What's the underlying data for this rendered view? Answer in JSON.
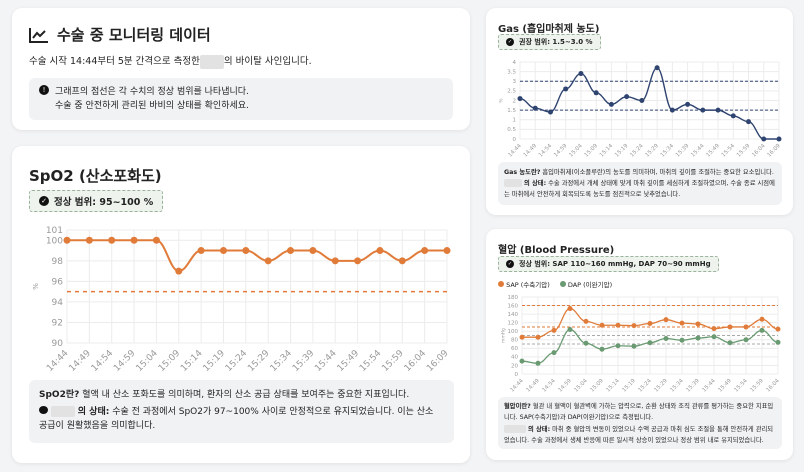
{
  "header": {
    "title": "수술 중 모니터링 데이터",
    "subtitle_pre": "수술 시작 14:44부터 5분 간격으로 측정한",
    "subtitle_post": "의 바이탈 사인입니다.",
    "info_line1": "그래프의 점선은 각 수치의 정상 범위를 나타냅니다.",
    "info_line2": "수술 중 안전하게 관리된 바비의 상태를 확인하세요."
  },
  "spo2": {
    "title": "SpO2 (산소포화도)",
    "badge": "정상 범위: 95~100 %",
    "note_bold": "SpO2란?",
    "note_text": " 혈액 내 산소 포화도를 의미하며, 환자의 산소 공급 상태를 보여주는 중요한 지표입니다.",
    "status_label": "의 상태:",
    "status_text": " 수술 전 과정에서 SpO2가 97~100% 사이로 안정적으로 유지되었습니다. 이는 산소 공급이 원활했음을 의미합니다."
  },
  "gas": {
    "title": "Gas (흡입마취제 농도)",
    "badge": "권장 범위: 1.5~3.0 %",
    "note_bold": "Gas 농도란?",
    "note_text": " 흡입마취제(이소플루란)의 농도를 의미하며, 마취의 깊이를 조절하는 중요한 요소입니다.",
    "status_label": "의 상태:",
    "status_text": " 수술 과정에서 개체 상태에 맞게 마취 깊이를 세심하게 조절하였으며, 수술 종료 시점에는 마취에서 안전하게 회복되도록 농도를 점진적으로 낮추었습니다."
  },
  "bp": {
    "title": "혈압 (Blood Pressure)",
    "badge": "정상 범위: SAP 110~160 mmHg, DAP 70~90 mmHg",
    "note_bold": "혈압이란?",
    "note_text": " 혈관 내 혈액이 혈관벽에 가하는 압력으로, 순환 상태와 조직 관류를 평가하는 중요한 지표입니다. SAP(수축기압)과 DAP(이완기압)으로 측정됩니다.",
    "status_label": "의 상태:",
    "status_text": " 마취 중 혈압의 변동이 있었으나 수액 공급과 마취 심도 조절을 통해 안전하게 관리되었습니다. 수술 과정에서 생체 반응에 따른 일시적 상승이 있었으나 정상 범위 내로 유지되었습니다."
  },
  "colors": {
    "spo2": "#e07b39",
    "gas": "#2f4470",
    "sap": "#e07b39",
    "dap": "#6a9a72"
  },
  "chart_data": [
    {
      "type": "line",
      "title": "SpO2 (산소포화도)",
      "ylabel": "%",
      "ylim": [
        90,
        101
      ],
      "yticks": [
        90,
        92,
        94,
        96,
        98,
        100,
        101
      ],
      "x": [
        "14:44",
        "14:49",
        "14:54",
        "14:59",
        "15:04",
        "15:09",
        "15:14",
        "15:19",
        "15:24",
        "15:29",
        "15:34",
        "15:39",
        "15:44",
        "15:49",
        "15:54",
        "15:59",
        "16:04",
        "16:09"
      ],
      "series": [
        {
          "name": "SpO2",
          "values": [
            100,
            100,
            100,
            100,
            100,
            97,
            99,
            99,
            99,
            98,
            99,
            99,
            98,
            98,
            99,
            98,
            99,
            99
          ]
        }
      ],
      "ref_lines": [
        95
      ]
    },
    {
      "type": "line",
      "title": "Gas (흡입마취제 농도)",
      "ylabel": "%",
      "ylim": [
        0,
        4
      ],
      "yticks": [
        0,
        0.5,
        1.0,
        1.5,
        2.0,
        2.5,
        3.0,
        3.5,
        4.0
      ],
      "x": [
        "14:44",
        "14:49",
        "14:54",
        "14:59",
        "15:04",
        "15:09",
        "15:14",
        "15:19",
        "15:24",
        "15:29",
        "15:34",
        "15:39",
        "15:44",
        "15:49",
        "15:54",
        "15:59",
        "16:04",
        "16:09"
      ],
      "series": [
        {
          "name": "Gas",
          "values": [
            2.1,
            1.6,
            1.4,
            2.6,
            3.4,
            2.4,
            1.8,
            2.2,
            2.0,
            3.7,
            1.5,
            1.8,
            1.5,
            1.5,
            1.2,
            0.9,
            0,
            0
          ]
        }
      ],
      "ref_lines": [
        1.5,
        3.0
      ]
    },
    {
      "type": "line",
      "title": "혈압 (Blood Pressure)",
      "ylabel": "mmHg",
      "ylim": [
        0,
        180
      ],
      "yticks": [
        0,
        20,
        40,
        60,
        80,
        100,
        120,
        140,
        160,
        180
      ],
      "legend": "top-left",
      "x": [
        "14:44",
        "14:49",
        "14:54",
        "14:59",
        "15:04",
        "15:09",
        "15:14",
        "15:19",
        "15:24",
        "15:29",
        "15:34",
        "15:39",
        "15:44",
        "15:49",
        "15:54",
        "15:59",
        "16:04"
      ],
      "series": [
        {
          "name": "SAP (수축기압)",
          "values": [
            86,
            86,
            102,
            153,
            123,
            114,
            114,
            113,
            118,
            127,
            119,
            117,
            106,
            110,
            110,
            128,
            105
          ]
        },
        {
          "name": "DAP (이완기압)",
          "values": [
            30,
            25,
            50,
            104,
            72,
            58,
            66,
            65,
            73,
            83,
            79,
            84,
            87,
            73,
            80,
            102,
            74
          ]
        }
      ],
      "ref_lines": [
        160,
        110,
        90,
        70
      ]
    }
  ]
}
